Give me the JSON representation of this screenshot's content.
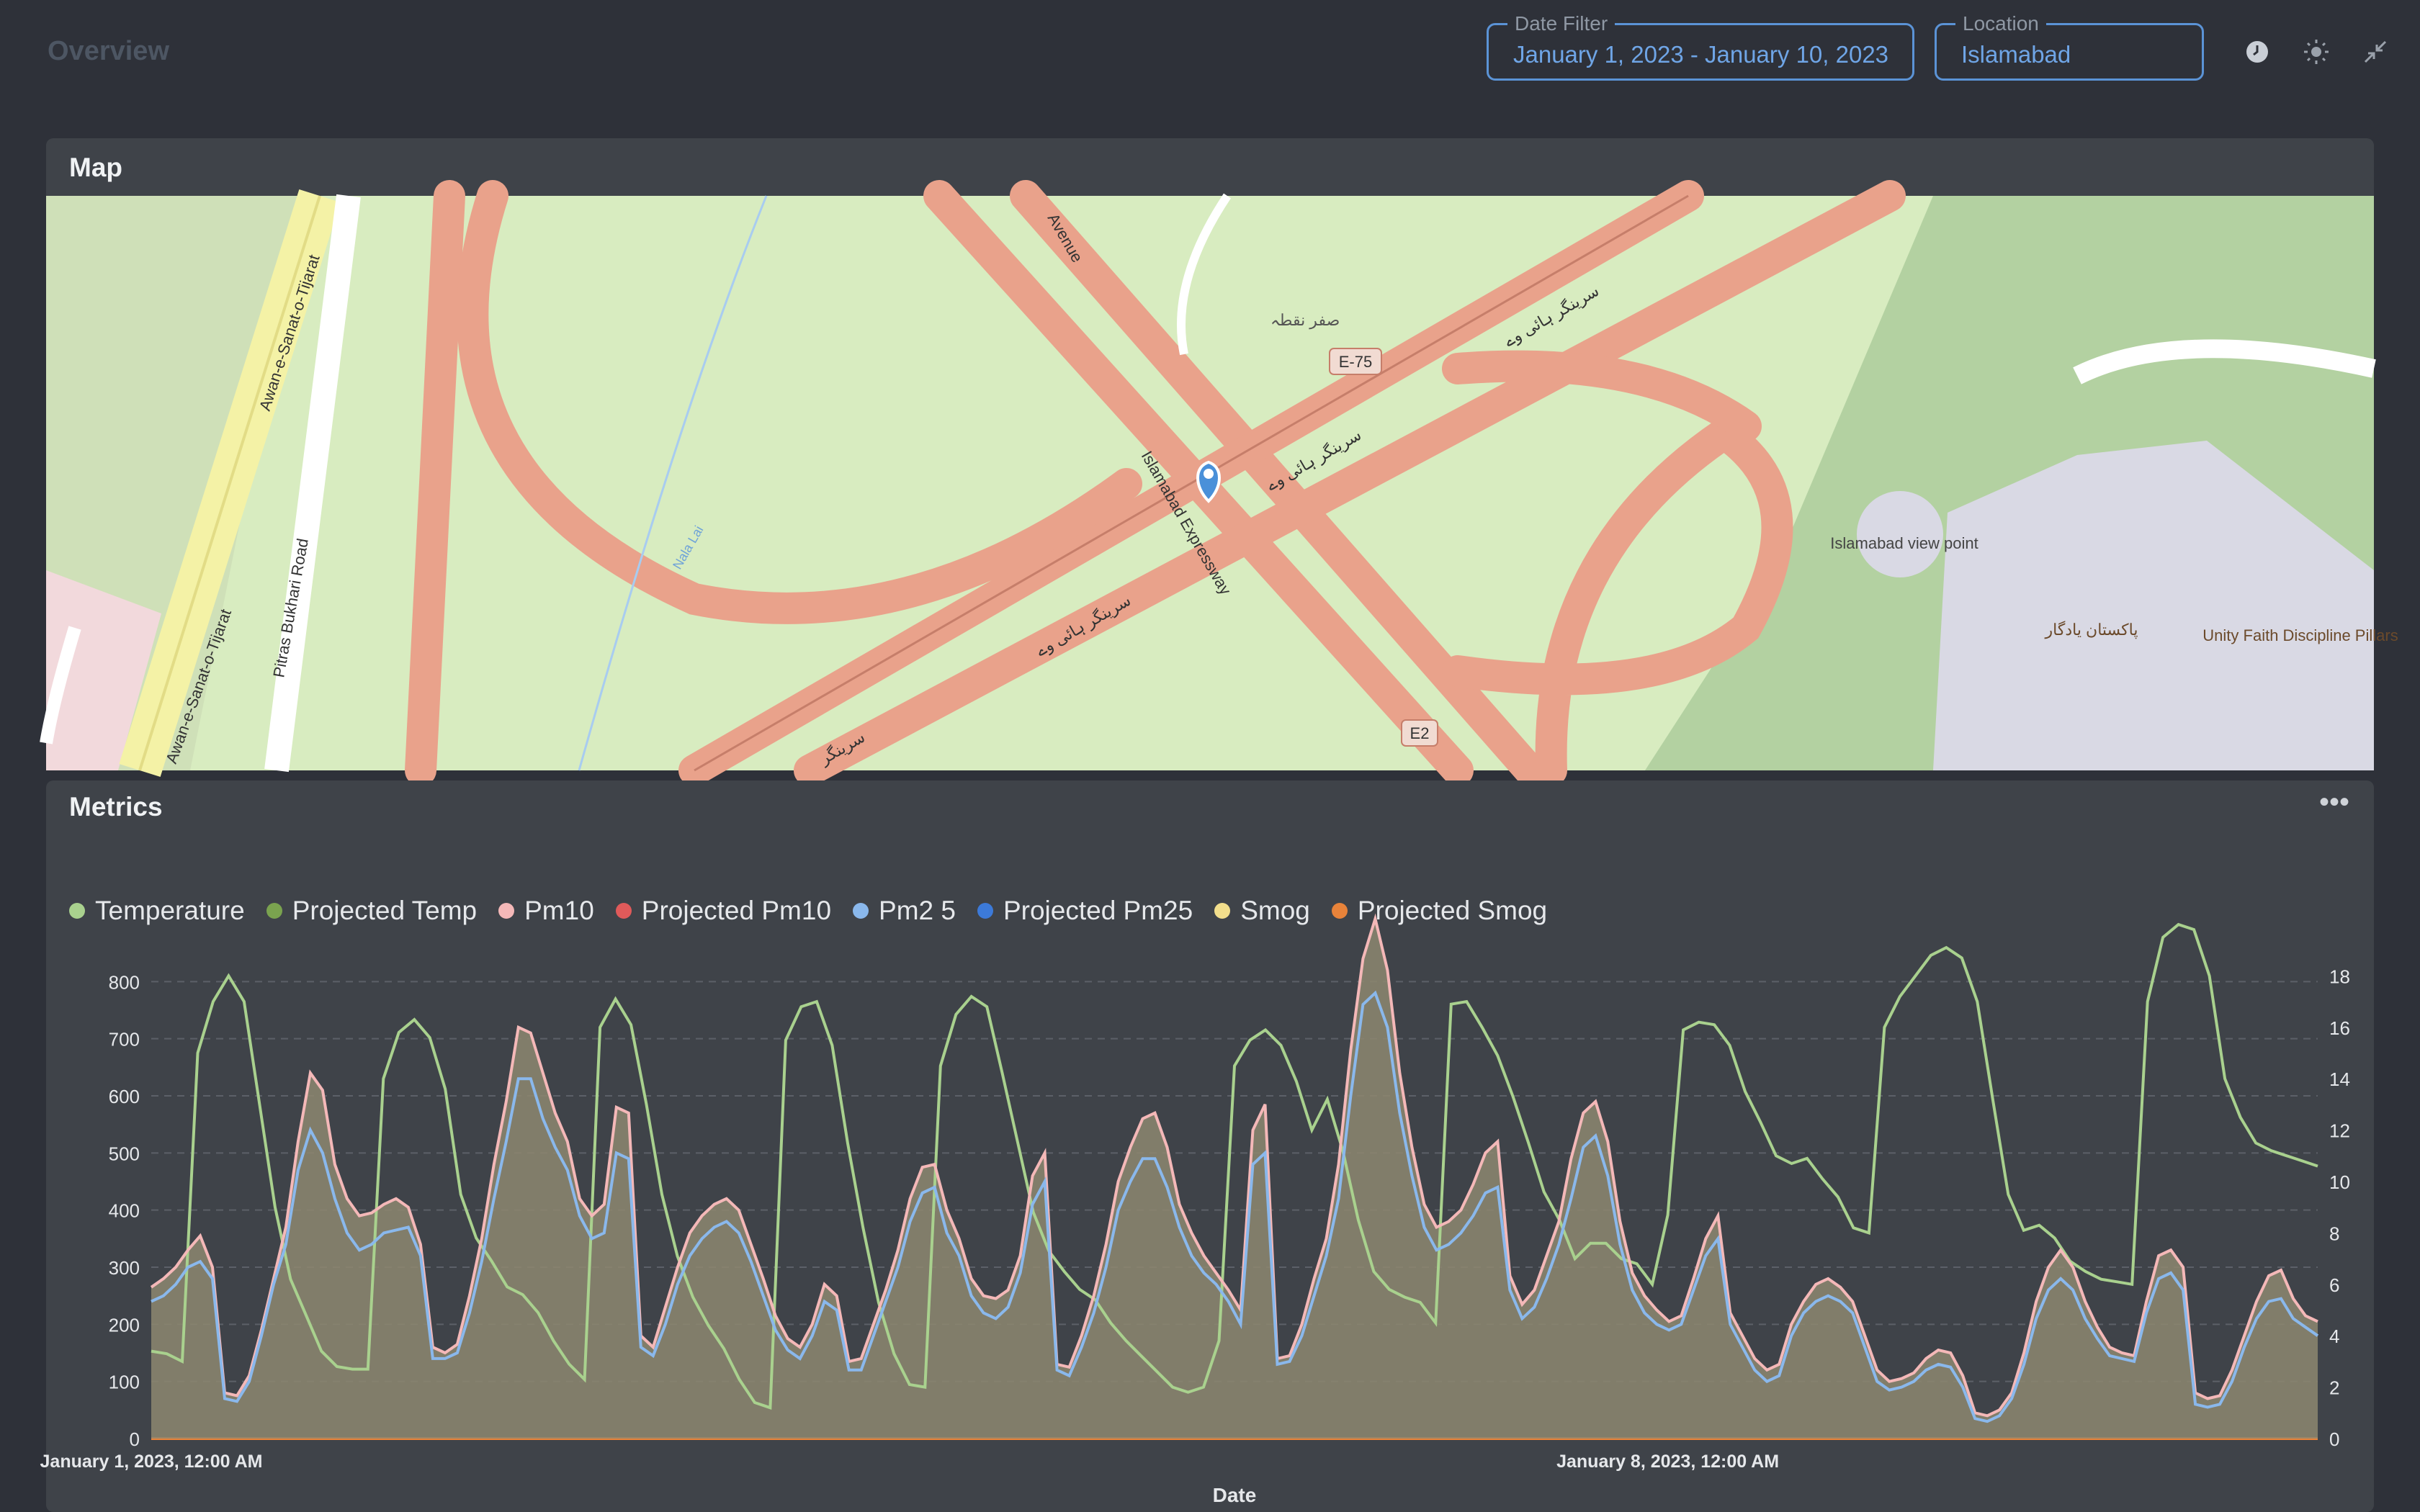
{
  "header": {
    "title": "Overview",
    "date_filter": {
      "label": "Date Filter",
      "value": "January 1, 2023 - January 10, 2023"
    },
    "location": {
      "label": "Location",
      "value": "Islamabad"
    },
    "icons": [
      "history-icon",
      "theme-toggle-icon",
      "collapse-icon"
    ]
  },
  "map_panel": {
    "title": "Map",
    "labels": {
      "road_1": "Awan-e-Sanat-o-Tijarat",
      "road_2": "Awan-e-Sanat-o-Tijarat",
      "road_3": "Pitras Bukhari Road",
      "road_4": "Islamabad Expressway",
      "road_5": "Avenue",
      "stream": "Nala Lai",
      "shield_e75": "E-75",
      "shield_e2": "E2",
      "urdu_1": "سرینگر ہائی وے",
      "urdu_2": "سرینگر ہائی وے",
      "urdu_3": "سرینگر ہائی وے",
      "urdu_4": "صفر نقطہ",
      "urdu_5": "سرینگر",
      "urdu_6": "پاکستان یادگار",
      "viewpoint": "Islamabad view point",
      "pillars": "Unity Faith Discipline Pillars"
    },
    "colors": {
      "land": "#d8ecc0",
      "road": "#e9a28b",
      "park": "#b3d1a1",
      "plaza": "#d9d9e4",
      "marker": "#4a90d9"
    }
  },
  "metrics_panel": {
    "title": "Metrics",
    "menu_icon": "more-icon"
  },
  "chart_data": {
    "type": "line",
    "x_axis": {
      "label": "Date",
      "tick_labels": [
        "January 1, 2023, 12:00 AM",
        "January 8, 2023, 12:00 AM"
      ],
      "range": [
        "January 1, 2023",
        "January 10, 2023"
      ]
    },
    "y_axis_left": {
      "ticks": [
        0,
        100,
        200,
        300,
        400,
        500,
        600,
        700,
        800
      ],
      "range": [
        0,
        900
      ]
    },
    "y_axis_right": {
      "ticks": [
        0,
        2,
        4,
        6,
        8,
        10,
        12,
        14,
        16,
        18
      ],
      "range": [
        0,
        20
      ]
    },
    "grid": true,
    "legend_position": "top-left",
    "series": [
      {
        "name": "Temperature",
        "color": "#a9d18e",
        "axis": "right",
        "values": [
          3.4,
          3.3,
          3.0,
          15.0,
          17.0,
          18.0,
          17.0,
          13.0,
          9.0,
          6.2,
          4.8,
          3.4,
          2.8,
          2.7,
          2.7,
          14.0,
          15.8,
          16.3,
          15.6,
          13.6,
          9.5,
          7.8,
          6.9,
          5.9,
          5.6,
          4.9,
          3.8,
          2.9,
          2.3,
          16.0,
          17.1,
          16.1,
          13.0,
          9.5,
          7.1,
          5.5,
          4.4,
          3.5,
          2.3,
          1.4,
          1.2,
          15.5,
          16.8,
          17.0,
          15.3,
          11.5,
          8.2,
          5.3,
          3.3,
          2.1,
          2.0,
          14.5,
          16.5,
          17.2,
          16.8,
          14.2,
          11.5,
          8.8,
          7.3,
          6.5,
          5.8,
          5.4,
          4.5,
          3.8,
          3.2,
          2.6,
          2.0,
          1.8,
          2.0,
          3.8,
          14.5,
          15.5,
          15.9,
          15.3,
          13.9,
          12.0,
          13.2,
          11.2,
          8.5,
          6.5,
          5.8,
          5.5,
          5.3,
          4.5,
          16.9,
          17.0,
          16.0,
          14.9,
          13.3,
          11.5,
          9.6,
          8.5,
          7.0,
          7.6,
          7.6,
          7.0,
          6.8,
          6.0,
          8.7,
          15.9,
          16.2,
          16.1,
          15.3,
          13.5,
          12.3,
          11.0,
          10.7,
          10.9,
          10.1,
          9.4,
          8.2,
          8.0,
          16.0,
          17.2,
          18.0,
          18.8,
          19.1,
          18.7,
          17.0,
          13.2,
          9.5,
          8.1,
          8.3,
          7.8,
          6.9,
          6.5,
          6.2,
          6.1,
          6.0,
          17.0,
          19.5,
          20.0,
          19.8,
          18.0,
          14.0,
          12.5,
          11.5,
          11.2,
          11.0,
          10.8,
          10.6
        ]
      },
      {
        "name": "Projected Temp",
        "color": "#7aa34f",
        "axis": "right",
        "values": []
      },
      {
        "name": "Pm10",
        "color": "#f4b8b8",
        "axis": "left",
        "values": [
          265,
          280,
          300,
          330,
          355,
          300,
          80,
          75,
          110,
          190,
          280,
          370,
          520,
          640,
          610,
          480,
          420,
          390,
          395,
          410,
          420,
          405,
          340,
          160,
          150,
          165,
          250,
          350,
          480,
          590,
          720,
          710,
          640,
          570,
          520,
          420,
          390,
          410,
          580,
          570,
          180,
          160,
          230,
          300,
          360,
          390,
          410,
          420,
          400,
          340,
          280,
          215,
          175,
          160,
          200,
          270,
          250,
          135,
          140,
          200,
          260,
          330,
          420,
          475,
          480,
          400,
          350,
          280,
          250,
          245,
          260,
          320,
          460,
          500,
          130,
          125,
          180,
          250,
          340,
          450,
          510,
          560,
          570,
          510,
          410,
          360,
          320,
          290,
          260,
          225,
          540,
          585,
          140,
          145,
          200,
          280,
          350,
          480,
          680,
          840,
          910,
          820,
          640,
          510,
          410,
          370,
          380,
          400,
          445,
          500,
          520,
          285,
          235,
          260,
          320,
          380,
          490,
          570,
          590,
          520,
          380,
          290,
          250,
          225,
          205,
          215,
          280,
          350,
          390,
          220,
          180,
          140,
          120,
          130,
          200,
          240,
          270,
          280,
          265,
          240,
          180,
          120,
          100,
          105,
          115,
          140,
          155,
          150,
          110,
          45,
          40,
          50,
          80,
          150,
          240,
          300,
          330,
          300,
          240,
          195,
          160,
          150,
          145,
          240,
          320,
          330,
          300,
          80,
          70,
          75,
          120,
          180,
          240,
          285,
          295,
          245,
          215,
          205
        ]
      },
      {
        "name": "Projected Pm10",
        "color": "#e05a5a",
        "axis": "left",
        "values": []
      },
      {
        "name": "Pm2 5",
        "color": "#8ab8ec",
        "axis": "left",
        "values": [
          240,
          250,
          270,
          300,
          310,
          280,
          70,
          65,
          100,
          180,
          270,
          340,
          470,
          540,
          500,
          420,
          360,
          330,
          340,
          360,
          365,
          370,
          320,
          140,
          140,
          150,
          220,
          310,
          420,
          520,
          630,
          630,
          560,
          510,
          470,
          390,
          350,
          360,
          500,
          490,
          160,
          145,
          200,
          270,
          320,
          350,
          370,
          380,
          360,
          310,
          250,
          190,
          155,
          140,
          180,
          240,
          225,
          120,
          120,
          180,
          240,
          300,
          380,
          430,
          440,
          360,
          320,
          250,
          220,
          210,
          230,
          290,
          410,
          450,
          120,
          110,
          160,
          220,
          300,
          400,
          450,
          490,
          490,
          440,
          370,
          320,
          290,
          270,
          240,
          200,
          480,
          500,
          130,
          135,
          180,
          250,
          320,
          420,
          600,
          760,
          780,
          720,
          570,
          460,
          370,
          330,
          340,
          360,
          390,
          430,
          440,
          260,
          210,
          230,
          280,
          340,
          420,
          510,
          530,
          460,
          340,
          260,
          220,
          200,
          190,
          200,
          260,
          320,
          350,
          200,
          160,
          120,
          100,
          110,
          180,
          220,
          240,
          250,
          240,
          220,
          160,
          100,
          85,
          90,
          100,
          120,
          130,
          125,
          90,
          35,
          30,
          40,
          70,
          130,
          210,
          260,
          280,
          260,
          210,
          175,
          145,
          140,
          135,
          220,
          280,
          290,
          260,
          60,
          55,
          60,
          100,
          160,
          210,
          240,
          245,
          210,
          195,
          180
        ]
      },
      {
        "name": "Projected Pm25",
        "color": "#3c7ad9",
        "axis": "left",
        "values": []
      },
      {
        "name": "Smog",
        "color": "#f2de8c",
        "axis": "left",
        "values": []
      },
      {
        "name": "Projected Smog",
        "color": "#e8833a",
        "axis": "left",
        "values": [
          0,
          0
        ]
      }
    ]
  }
}
